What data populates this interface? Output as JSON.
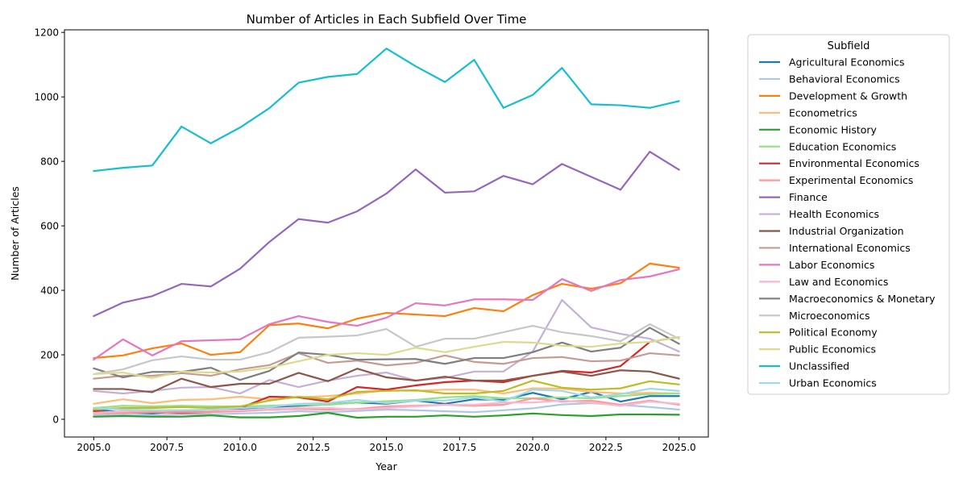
{
  "chart_data": {
    "type": "line",
    "title": "Number of Articles in Each Subfield Over Time",
    "xlabel": "Year",
    "ylabel": "Number of Articles",
    "xlim": [
      2004,
      2026
    ],
    "ylim": [
      -55,
      1208
    ],
    "x_ticks": [
      2005,
      2007.5,
      2010,
      2012.5,
      2015,
      2017.5,
      2020,
      2022.5,
      2025
    ],
    "x_tick_labels": [
      "2005.0",
      "2007.5",
      "2010.0",
      "2012.5",
      "2015.0",
      "2017.5",
      "2020.0",
      "2022.5",
      "2025.0"
    ],
    "y_ticks": [
      0,
      200,
      400,
      600,
      800,
      1000,
      1200
    ],
    "y_tick_labels": [
      "0",
      "200",
      "400",
      "600",
      "800",
      "1000",
      "1200"
    ],
    "legend_title": "Subfield",
    "legend_position": "outside-right",
    "grid": false,
    "x": [
      2005,
      2006,
      2007,
      2008,
      2009,
      2010,
      2011,
      2012,
      2013,
      2014,
      2015,
      2016,
      2017,
      2018,
      2019,
      2020,
      2021,
      2022,
      2023,
      2024,
      2025
    ],
    "series": [
      {
        "name": "Agricultural Economics",
        "color": "#1f77b4",
        "values": [
          30,
          22,
          18,
          25,
          22,
          32,
          38,
          42,
          46,
          52,
          48,
          58,
          48,
          62,
          60,
          82,
          62,
          85,
          55,
          72,
          72
        ]
      },
      {
        "name": "Behavioral Economics",
        "color": "#aec7e8",
        "values": [
          12,
          15,
          12,
          15,
          15,
          18,
          20,
          25,
          22,
          26,
          30,
          28,
          25,
          22,
          28,
          34,
          46,
          50,
          45,
          38,
          30
        ]
      },
      {
        "name": "Development & Growth",
        "color": "#ff7f0e",
        "values": [
          190,
          198,
          220,
          235,
          200,
          208,
          292,
          297,
          282,
          312,
          330,
          325,
          320,
          345,
          335,
          385,
          420,
          405,
          422,
          483,
          470
        ]
      },
      {
        "name": "Econometrics",
        "color": "#ffbb78",
        "values": [
          48,
          62,
          50,
          60,
          62,
          70,
          62,
          68,
          72,
          80,
          90,
          88,
          92,
          92,
          80,
          96,
          95,
          85,
          80,
          82,
          80
        ]
      },
      {
        "name": "Economic History",
        "color": "#2ca02c",
        "values": [
          8,
          10,
          8,
          8,
          12,
          6,
          6,
          10,
          20,
          5,
          8,
          8,
          12,
          8,
          12,
          18,
          13,
          10,
          15,
          15,
          14
        ]
      },
      {
        "name": "Education Economics",
        "color": "#98df8a",
        "values": [
          35,
          42,
          40,
          42,
          40,
          40,
          42,
          45,
          45,
          52,
          56,
          60,
          68,
          72,
          65,
          65,
          68,
          65,
          72,
          78,
          80
        ]
      },
      {
        "name": "Environmental Economics",
        "color": "#d62728",
        "values": [
          25,
          20,
          22,
          20,
          22,
          35,
          70,
          68,
          55,
          100,
          92,
          105,
          115,
          120,
          115,
          135,
          150,
          145,
          165,
          240,
          255
        ]
      },
      {
        "name": "Experimental Economics",
        "color": "#ff9896",
        "values": [
          18,
          20,
          22,
          22,
          22,
          25,
          30,
          32,
          30,
          32,
          40,
          42,
          45,
          42,
          45,
          65,
          55,
          58,
          45,
          58,
          45
        ]
      },
      {
        "name": "Finance",
        "color": "#9467bd",
        "values": [
          320,
          362,
          382,
          420,
          412,
          467,
          550,
          621,
          610,
          645,
          700,
          775,
          703,
          707,
          755,
          729,
          792,
          752,
          712,
          830,
          774
        ]
      },
      {
        "name": "Health Economics",
        "color": "#c5b0d5",
        "values": [
          88,
          80,
          88,
          98,
          100,
          80,
          122,
          100,
          120,
          135,
          145,
          120,
          128,
          148,
          148,
          210,
          370,
          285,
          265,
          250,
          210
        ]
      },
      {
        "name": "Industrial Organization",
        "color": "#8c564b",
        "values": [
          94,
          94,
          84,
          126,
          100,
          110,
          110,
          144,
          118,
          157,
          130,
          120,
          132,
          120,
          120,
          135,
          148,
          135,
          152,
          148,
          126
        ]
      },
      {
        "name": "International Economics",
        "color": "#c49c94",
        "values": [
          126,
          135,
          135,
          143,
          135,
          155,
          168,
          205,
          175,
          182,
          167,
          175,
          198,
          178,
          172,
          190,
          193,
          180,
          182,
          205,
          198
        ]
      },
      {
        "name": "Labor Economics",
        "color": "#e377c2",
        "values": [
          185,
          248,
          198,
          242,
          245,
          248,
          295,
          320,
          302,
          290,
          315,
          360,
          353,
          372,
          372,
          370,
          435,
          398,
          432,
          443,
          465
        ]
      },
      {
        "name": "Law and Economics",
        "color": "#f7b6d2",
        "values": [
          20,
          25,
          28,
          28,
          28,
          28,
          32,
          35,
          35,
          30,
          35,
          40,
          45,
          45,
          52,
          52,
          58,
          52,
          42,
          55,
          48
        ]
      },
      {
        "name": "Macroeconomics & Monetary",
        "color": "#7f7f7f",
        "values": [
          158,
          130,
          147,
          147,
          160,
          122,
          150,
          207,
          200,
          185,
          186,
          187,
          172,
          190,
          190,
          208,
          238,
          210,
          222,
          284,
          234
        ]
      },
      {
        "name": "Microeconomics",
        "color": "#c7c7c7",
        "values": [
          140,
          155,
          183,
          195,
          185,
          185,
          208,
          253,
          256,
          260,
          280,
          225,
          250,
          250,
          270,
          290,
          270,
          258,
          242,
          295,
          250
        ]
      },
      {
        "name": "Political Economy",
        "color": "#bcbd22",
        "values": [
          30,
          35,
          35,
          38,
          35,
          40,
          58,
          70,
          62,
          85,
          88,
          90,
          80,
          80,
          88,
          120,
          98,
          92,
          96,
          118,
          108
        ]
      },
      {
        "name": "Public Economics",
        "color": "#dbdb8d",
        "values": [
          140,
          145,
          128,
          148,
          145,
          148,
          160,
          180,
          200,
          205,
          200,
          222,
          208,
          225,
          240,
          238,
          228,
          225,
          235,
          240,
          255
        ]
      },
      {
        "name": "Unclassified",
        "color": "#17becf",
        "values": [
          770,
          780,
          787,
          908,
          856,
          905,
          965,
          1044,
          1062,
          1071,
          1150,
          1095,
          1046,
          1115,
          966,
          1006,
          1090,
          977,
          974,
          966,
          987
        ]
      },
      {
        "name": "Urban Economics",
        "color": "#9edae5",
        "values": [
          35,
          30,
          28,
          28,
          30,
          35,
          38,
          48,
          50,
          60,
          50,
          58,
          58,
          68,
          55,
          92,
          88,
          68,
          78,
          95,
          88
        ]
      }
    ]
  }
}
